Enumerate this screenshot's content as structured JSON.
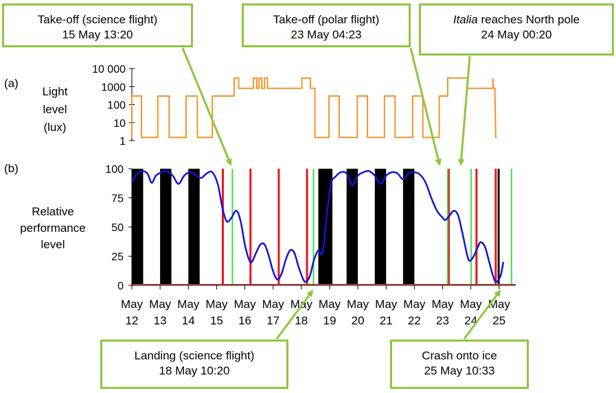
{
  "panel_labels": {
    "a": "(a)",
    "b": "(b)"
  },
  "chart_data": [
    {
      "type": "line",
      "panel": "(a)",
      "ylabel_lines": [
        "Light",
        "level",
        "(lux)"
      ],
      "y_scale": "log",
      "y_ticks": [
        1,
        10,
        100,
        1000,
        10000
      ],
      "y_tick_labels": [
        "1",
        "10",
        "100",
        "1000",
        "10 000"
      ],
      "series": [
        {
          "color": "#f5922a",
          "points": [
            [
              12.0,
              1.5
            ],
            [
              12.0,
              300
            ],
            [
              12.34,
              300
            ],
            [
              12.34,
              1.5
            ],
            [
              12.92,
              1.5
            ],
            [
              12.92,
              300
            ],
            [
              13.32,
              300
            ],
            [
              13.32,
              1.5
            ],
            [
              13.92,
              1.5
            ],
            [
              13.92,
              300
            ],
            [
              14.32,
              300
            ],
            [
              14.32,
              1.5
            ],
            [
              14.85,
              1.5
            ],
            [
              14.85,
              300
            ],
            [
              15.62,
              300
            ],
            [
              15.62,
              3000
            ],
            [
              15.78,
              3000
            ],
            [
              15.78,
              800
            ],
            [
              16.3,
              800
            ],
            [
              16.3,
              3000
            ],
            [
              16.42,
              3000
            ],
            [
              16.42,
              800
            ],
            [
              16.5,
              800
            ],
            [
              16.5,
              3000
            ],
            [
              16.6,
              3000
            ],
            [
              16.6,
              800
            ],
            [
              16.7,
              800
            ],
            [
              16.7,
              3000
            ],
            [
              16.8,
              3000
            ],
            [
              16.8,
              800
            ],
            [
              18.02,
              800
            ],
            [
              18.02,
              3000
            ],
            [
              18.32,
              3000
            ],
            [
              18.32,
              800
            ],
            [
              18.48,
              800
            ],
            [
              18.48,
              1.5
            ],
            [
              18.98,
              1.5
            ],
            [
              18.98,
              300
            ],
            [
              19.34,
              300
            ],
            [
              19.34,
              1.5
            ],
            [
              19.98,
              1.5
            ],
            [
              19.98,
              300
            ],
            [
              20.34,
              300
            ],
            [
              20.34,
              1.5
            ],
            [
              20.94,
              1.5
            ],
            [
              20.94,
              300
            ],
            [
              21.32,
              300
            ],
            [
              21.32,
              1.5
            ],
            [
              21.94,
              1.5
            ],
            [
              21.94,
              300
            ],
            [
              22.3,
              300
            ],
            [
              22.3,
              1.5
            ],
            [
              22.88,
              1.5
            ],
            [
              22.88,
              300
            ],
            [
              23.18,
              300
            ],
            [
              23.18,
              3000
            ],
            [
              23.88,
              3000
            ],
            [
              23.88,
              800
            ],
            [
              24.78,
              800
            ],
            [
              24.78,
              3000
            ],
            [
              24.8,
              800
            ],
            [
              24.85,
              800
            ],
            [
              24.88,
              1.5
            ],
            [
              24.92,
              1.5
            ]
          ]
        }
      ]
    },
    {
      "type": "line",
      "panel": "(b)",
      "ylabel_lines": [
        "Relative",
        "performance",
        "level"
      ],
      "ylim": [
        0,
        100
      ],
      "y_ticks": [
        0,
        25,
        50,
        75,
        100
      ],
      "x_ticks": [
        12,
        13,
        14,
        15,
        16,
        17,
        18,
        19,
        20,
        21,
        22,
        23,
        24,
        25
      ],
      "x_tick_labels": [
        [
          "May",
          "12"
        ],
        [
          "May",
          "13"
        ],
        [
          "May",
          "14"
        ],
        [
          "May",
          "15"
        ],
        [
          "May",
          "16"
        ],
        [
          "May",
          "17"
        ],
        [
          "May",
          "18"
        ],
        [
          "May",
          "19"
        ],
        [
          "May",
          "20"
        ],
        [
          "May",
          "21"
        ],
        [
          "May",
          "22"
        ],
        [
          "May",
          "23"
        ],
        [
          "May",
          "24"
        ],
        [
          "May",
          "25"
        ]
      ],
      "dark_periods": [
        [
          12.0,
          12.4
        ],
        [
          13.0,
          13.4
        ],
        [
          14.0,
          14.4
        ],
        [
          18.6,
          19.1
        ],
        [
          19.6,
          20.0
        ],
        [
          20.6,
          21.0
        ],
        [
          21.6,
          22.0
        ],
        [
          24.95,
          25.02
        ]
      ],
      "red_markers": [
        15.22,
        16.2,
        17.2,
        18.2,
        23.22,
        24.2,
        24.88
      ],
      "green_markers": [
        15.56,
        18.43,
        23.18,
        24.01,
        25.44
      ],
      "baseline_color": "#9e3b2c",
      "series": [
        {
          "color": "#1414d2",
          "points": [
            [
              12.0,
              88
            ],
            [
              12.08,
              92
            ],
            [
              12.2,
              96
            ],
            [
              12.35,
              98
            ],
            [
              12.55,
              96
            ],
            [
              12.7,
              88
            ],
            [
              12.85,
              94
            ],
            [
              13.05,
              97
            ],
            [
              13.25,
              98
            ],
            [
              13.45,
              94
            ],
            [
              13.65,
              87
            ],
            [
              13.85,
              94
            ],
            [
              14.05,
              97
            ],
            [
              14.25,
              95
            ],
            [
              14.45,
              92
            ],
            [
              14.65,
              96
            ],
            [
              14.85,
              97
            ],
            [
              15.05,
              86
            ],
            [
              15.2,
              67
            ],
            [
              15.35,
              55
            ],
            [
              15.5,
              57
            ],
            [
              15.7,
              64
            ],
            [
              15.85,
              55
            ],
            [
              16.0,
              35
            ],
            [
              16.15,
              22
            ],
            [
              16.25,
              20
            ],
            [
              16.4,
              28
            ],
            [
              16.55,
              35
            ],
            [
              16.7,
              35
            ],
            [
              16.85,
              25
            ],
            [
              17.0,
              12
            ],
            [
              17.15,
              5
            ],
            [
              17.3,
              10
            ],
            [
              17.45,
              22
            ],
            [
              17.6,
              30
            ],
            [
              17.75,
              28
            ],
            [
              17.9,
              16
            ],
            [
              18.05,
              6
            ],
            [
              18.15,
              3
            ],
            [
              18.3,
              8
            ],
            [
              18.45,
              22
            ],
            [
              18.6,
              30
            ],
            [
              18.75,
              28
            ],
            [
              18.9,
              60
            ],
            [
              19.05,
              87
            ],
            [
              19.2,
              93
            ],
            [
              19.4,
              97
            ],
            [
              19.6,
              96
            ],
            [
              19.8,
              86
            ],
            [
              20.0,
              94
            ],
            [
              20.2,
              97
            ],
            [
              20.4,
              98
            ],
            [
              20.6,
              94
            ],
            [
              20.8,
              87
            ],
            [
              21.0,
              94
            ],
            [
              21.2,
              97
            ],
            [
              21.4,
              96
            ],
            [
              21.6,
              91
            ],
            [
              21.8,
              96
            ],
            [
              22.0,
              97
            ],
            [
              22.2,
              95
            ],
            [
              22.4,
              88
            ],
            [
              22.6,
              75
            ],
            [
              22.8,
              64
            ],
            [
              23.0,
              58
            ],
            [
              23.1,
              56
            ],
            [
              23.25,
              60
            ],
            [
              23.4,
              64
            ],
            [
              23.55,
              60
            ],
            [
              23.7,
              45
            ],
            [
              23.85,
              28
            ],
            [
              23.95,
              21
            ],
            [
              24.1,
              25
            ],
            [
              24.25,
              33
            ],
            [
              24.35,
              37
            ],
            [
              24.5,
              33
            ],
            [
              24.65,
              20
            ],
            [
              24.8,
              7
            ],
            [
              24.9,
              3
            ],
            [
              25.05,
              8
            ],
            [
              25.15,
              20
            ]
          ]
        }
      ]
    }
  ],
  "callouts": {
    "takeoff_science": {
      "line1": "Take-off (science flight)",
      "line2": "15 May 13:20"
    },
    "takeoff_polar": {
      "line1": "Take-off (polar flight)",
      "line2": "23 May 04:23"
    },
    "italia_pole": {
      "line1_italic": "Italia",
      "line1_rest": " reaches North pole",
      "line2": "24 May 00:20"
    },
    "landing_science": {
      "line1": "Landing (science flight)",
      "line2": "18 May 10:20"
    },
    "crash": {
      "line1": "Crash onto ice",
      "line2": "25 May 10:33"
    }
  }
}
